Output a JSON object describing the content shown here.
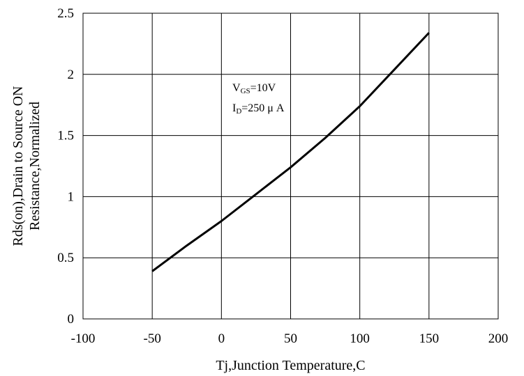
{
  "chart_data": {
    "type": "line",
    "title": "",
    "xlabel": "Tj,Junction Temperature,C",
    "ylabel_lines": [
      "Rds(on),Drain to Source ON",
      "Resistance,Normalized"
    ],
    "xlim": [
      -100,
      200
    ],
    "ylim": [
      0,
      2.5
    ],
    "xticks": [
      -100,
      -50,
      0,
      50,
      100,
      150,
      200
    ],
    "yticks": [
      0,
      0.5,
      1,
      1.5,
      2,
      2.5
    ],
    "grid": true,
    "legend": "none",
    "series": [
      {
        "color": "#000000",
        "x": [
          -50,
          -25,
          0,
          25,
          50,
          75,
          100,
          125,
          150
        ],
        "y": [
          0.39,
          0.6,
          0.8,
          1.02,
          1.24,
          1.48,
          1.74,
          2.04,
          2.34
        ]
      }
    ],
    "annotations": [
      {
        "main": "V",
        "sub": "GS",
        "rest": "=10V"
      },
      {
        "main": "I",
        "sub": "D",
        "rest": "=250 μ A"
      }
    ]
  }
}
